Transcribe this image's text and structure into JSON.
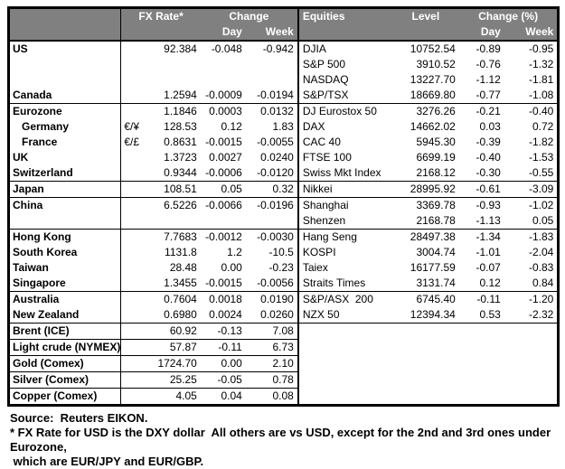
{
  "colors": {
    "header_bg": "#808080",
    "header_text": "#ffffff",
    "border": "#000000",
    "body_bg": "#ffffff"
  },
  "header": {
    "fx_rate": "FX Rate*",
    "change": "Change",
    "day": "Day",
    "week": "Week",
    "equities": "Equities",
    "level": "Level",
    "change_pct": "Change (%)",
    "day2": "Day",
    "week2": "Week"
  },
  "rows": [
    {
      "name": "US",
      "sym": "",
      "fx": "92.384",
      "fxd": "-0.048",
      "fxw": "-0.942",
      "eq": "DJIA",
      "lvl": "10752.54",
      "eqd": "-0.89",
      "eqw": "-0.95"
    },
    {
      "name": "",
      "sym": "",
      "fx": "",
      "fxd": "",
      "fxw": "",
      "eq": "S&P 500",
      "lvl": "3910.52",
      "eqd": "-0.76",
      "eqw": "-1.32"
    },
    {
      "name": "",
      "sym": "",
      "fx": "",
      "fxd": "",
      "fxw": "",
      "eq": "NASDAQ",
      "lvl": "13227.70",
      "eqd": "-1.12",
      "eqw": "-1.81"
    },
    {
      "name": "Canada",
      "sym": "",
      "fx": "1.2594",
      "fxd": "-0.0009",
      "fxw": "-0.0194",
      "eq": "S&P/TSX",
      "lvl": "18669.80",
      "eqd": "-0.77",
      "eqw": "-1.08"
    },
    {
      "sep": true,
      "name": "Eurozone",
      "sym": "",
      "fx": "1.1846",
      "fxd": "0.0003",
      "fxw": "0.0132",
      "eq": "DJ Eurostox 50",
      "lvl": "3276.26",
      "eqd": "-0.21",
      "eqw": "-0.40"
    },
    {
      "indent": true,
      "name": "Germany",
      "sym": "€/¥",
      "fx": "128.53",
      "fxd": "0.12",
      "fxw": "1.83",
      "eq": "DAX",
      "lvl": "14662.02",
      "eqd": "0.03",
      "eqw": "0.72"
    },
    {
      "indent": true,
      "name": "France",
      "sym": "€/£",
      "fx": "0.8631",
      "fxd": "-0.0015",
      "fxw": "-0.0055",
      "eq": "CAC 40",
      "lvl": "5945.30",
      "eqd": "-0.39",
      "eqw": "-1.82"
    },
    {
      "name": "UK",
      "sym": "",
      "fx": "1.3723",
      "fxd": "0.0027",
      "fxw": "0.0240",
      "eq": "FTSE 100",
      "lvl": "6699.19",
      "eqd": "-0.40",
      "eqw": "-1.53"
    },
    {
      "name": "Switzerland",
      "sym": "",
      "fx": "0.9344",
      "fxd": "-0.0006",
      "fxw": "-0.0120",
      "eq": "Swiss Mkt Index",
      "lvl": "2168.12",
      "eqd": "-0.30",
      "eqw": "-0.55"
    },
    {
      "sep": true,
      "name": "Japan",
      "sym": "",
      "fx": "108.51",
      "fxd": "0.05",
      "fxw": "0.32",
      "eq": "Nikkei",
      "lvl": "28995.92",
      "eqd": "-0.61",
      "eqw": "-3.09"
    },
    {
      "sep": true,
      "name": "China",
      "sym": "",
      "fx": "6.5226",
      "fxd": "-0.0066",
      "fxw": "-0.0196",
      "eq": "Shanghai",
      "lvl": "3369.78",
      "eqd": "-0.93",
      "eqw": "-1.02"
    },
    {
      "name": "",
      "sym": "",
      "fx": "",
      "fxd": "",
      "fxw": "",
      "eq": "Shenzen",
      "lvl": "2168.78",
      "eqd": "-1.13",
      "eqw": "0.05"
    },
    {
      "sep": true,
      "name": "Hong Kong",
      "sym": "",
      "fx": "7.7683",
      "fxd": "-0.0012",
      "fxw": "-0.0030",
      "eq": "Hang Seng",
      "lvl": "28497.38",
      "eqd": "-1.34",
      "eqw": "-1.83"
    },
    {
      "name": "South Korea",
      "sym": "",
      "fx": "1131.8",
      "fxd": "1.2",
      "fxw": "-10.5",
      "eq": "KOSPI",
      "lvl": "3004.74",
      "eqd": "-1.01",
      "eqw": "-2.04"
    },
    {
      "name": "Taiwan",
      "sym": "",
      "fx": "28.48",
      "fxd": "0.00",
      "fxw": "-0.23",
      "eq": "Taiex",
      "lvl": "16177.59",
      "eqd": "-0.07",
      "eqw": "-0.83"
    },
    {
      "name": "Singapore",
      "sym": "",
      "fx": "1.3455",
      "fxd": "-0.0015",
      "fxw": "-0.0056",
      "eq": "Straits Times",
      "lvl": "3131.74",
      "eqd": "0.12",
      "eqw": "0.84"
    },
    {
      "sep": true,
      "name": "Australia",
      "sym": "",
      "fx": "0.7604",
      "fxd": "0.0018",
      "fxw": "0.0190",
      "eq": "S&P/ASX  200",
      "lvl": "6745.40",
      "eqd": "-0.11",
      "eqw": "-1.20"
    },
    {
      "name": "New Zealand",
      "sym": "",
      "fx": "0.6980",
      "fxd": "0.0024",
      "fxw": "0.0260",
      "eq": "NZX 50",
      "lvl": "12394.34",
      "eqd": "0.53",
      "eqw": "-2.32"
    },
    {
      "sep": true,
      "name": "Brent (ICE)",
      "sym": "",
      "fx": "60.92",
      "fxd": "-0.13",
      "fxw": "7.08",
      "eq": "",
      "lvl": "",
      "eqd": "",
      "eqw": ""
    },
    {
      "lsep": true,
      "name": "Light crude (NYMEX)",
      "sym": "",
      "fx": "57.87",
      "fxd": "-0.11",
      "fxw": "6.73",
      "eq": "",
      "lvl": "",
      "eqd": "",
      "eqw": ""
    },
    {
      "lsep": true,
      "name": "Gold (Comex)",
      "sym": "",
      "fx": "1724.70",
      "fxd": "0.00",
      "fxw": "2.10",
      "eq": "",
      "lvl": "",
      "eqd": "",
      "eqw": ""
    },
    {
      "lsep": true,
      "name": "Silver (Comex)",
      "sym": "",
      "fx": "25.25",
      "fxd": "-0.05",
      "fxw": "0.78",
      "eq": "",
      "lvl": "",
      "eqd": "",
      "eqw": ""
    },
    {
      "lsep": true,
      "name": "Copper (Comex)",
      "sym": "",
      "fx": "4.05",
      "fxd": "0.04",
      "fxw": "0.08",
      "eq": "",
      "lvl": "",
      "eqd": "",
      "eqw": ""
    }
  ],
  "footer": {
    "source": "Source:  Reuters EIKON.",
    "note": "* FX Rate for USD is the DXY dollar  All others are vs USD, except for the 2nd and 3rd ones under Eurozone,\n which are EUR/JPY and EUR/GBP."
  }
}
